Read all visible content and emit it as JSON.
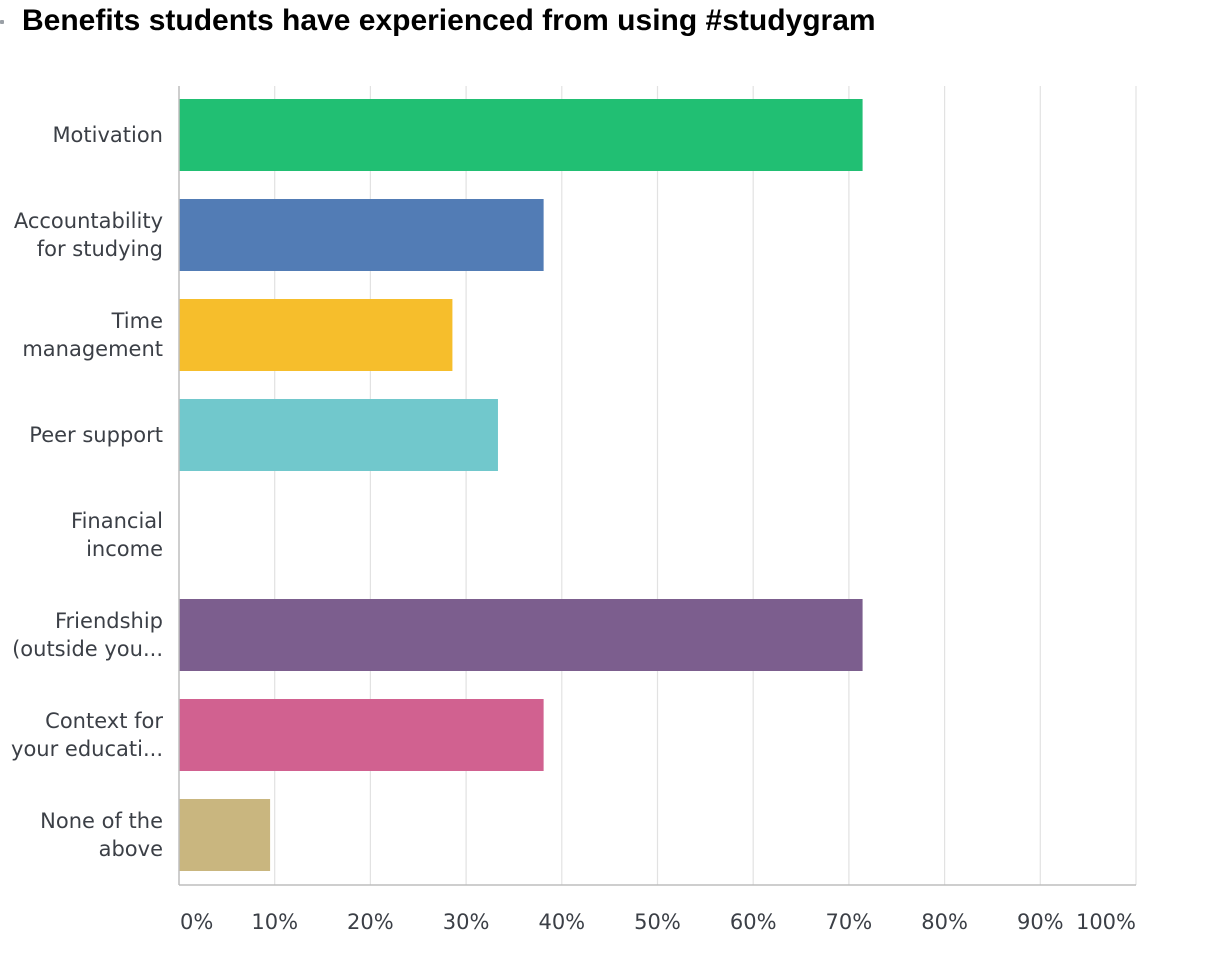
{
  "chart_data": {
    "type": "bar",
    "orientation": "horizontal",
    "title": "Benefits students have experienced from using #studygram",
    "categories": [
      [
        "Motivation"
      ],
      [
        "Accountability",
        "for studying"
      ],
      [
        "Time",
        "management"
      ],
      [
        "Peer support"
      ],
      [
        "Financial",
        "income"
      ],
      [
        "Friendship",
        "(outside you..."
      ],
      [
        "Context for",
        "your educati..."
      ],
      [
        "None of the",
        "above"
      ]
    ],
    "values": [
      71.43,
      38.1,
      28.57,
      33.33,
      0,
      71.43,
      38.1,
      9.52
    ],
    "colors": [
      "#21bf73",
      "#527cb5",
      "#f6be2c",
      "#71c8cc",
      "#e06b3a",
      "#7c5e8e",
      "#d16190",
      "#c9b67f"
    ],
    "xlim": [
      0,
      100
    ],
    "xticks": [
      0,
      10,
      20,
      30,
      40,
      50,
      60,
      70,
      80,
      90,
      100
    ],
    "xtick_labels": [
      "0%",
      "10%",
      "20%",
      "30%",
      "40%",
      "50%",
      "60%",
      "70%",
      "80%",
      "90%",
      "100%"
    ],
    "grid": true,
    "xlabel": "",
    "ylabel": ""
  }
}
